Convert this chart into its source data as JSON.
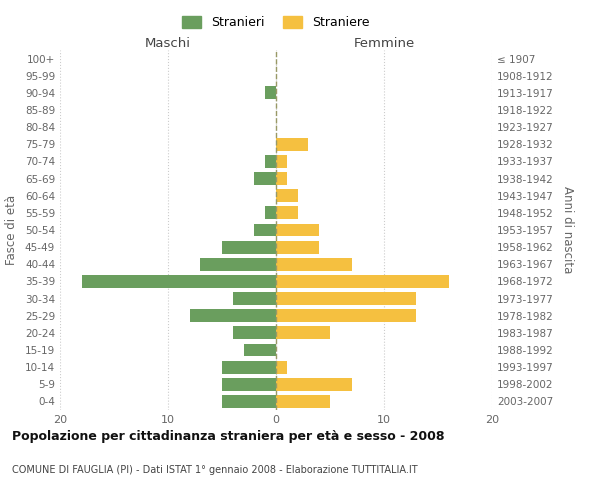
{
  "age_groups": [
    "100+",
    "95-99",
    "90-94",
    "85-89",
    "80-84",
    "75-79",
    "70-74",
    "65-69",
    "60-64",
    "55-59",
    "50-54",
    "45-49",
    "40-44",
    "35-39",
    "30-34",
    "25-29",
    "20-24",
    "15-19",
    "10-14",
    "5-9",
    "0-4"
  ],
  "birth_years": [
    "≤ 1907",
    "1908-1912",
    "1913-1917",
    "1918-1922",
    "1923-1927",
    "1928-1932",
    "1933-1937",
    "1938-1942",
    "1943-1947",
    "1948-1952",
    "1953-1957",
    "1958-1962",
    "1963-1967",
    "1968-1972",
    "1973-1977",
    "1978-1982",
    "1983-1987",
    "1988-1992",
    "1993-1997",
    "1998-2002",
    "2003-2007"
  ],
  "males": [
    0,
    0,
    1,
    0,
    0,
    0,
    1,
    2,
    0,
    1,
    2,
    5,
    7,
    18,
    4,
    8,
    4,
    3,
    5,
    5,
    5
  ],
  "females": [
    0,
    0,
    0,
    0,
    0,
    3,
    1,
    1,
    2,
    2,
    4,
    4,
    7,
    16,
    13,
    13,
    5,
    0,
    1,
    7,
    5
  ],
  "male_color": "#6a9e5e",
  "female_color": "#f5c040",
  "background_color": "#ffffff",
  "grid_color": "#cccccc",
  "title": "Popolazione per cittadinanza straniera per età e sesso - 2008",
  "subtitle": "COMUNE DI FAUGLIA (PI) - Dati ISTAT 1° gennaio 2008 - Elaborazione TUTTITALIA.IT",
  "xlabel_left": "Maschi",
  "xlabel_right": "Femmine",
  "ylabel_left": "Fasce di età",
  "ylabel_right": "Anni di nascita",
  "xlim": 20,
  "legend_stranieri": "Stranieri",
  "legend_straniere": "Straniere"
}
